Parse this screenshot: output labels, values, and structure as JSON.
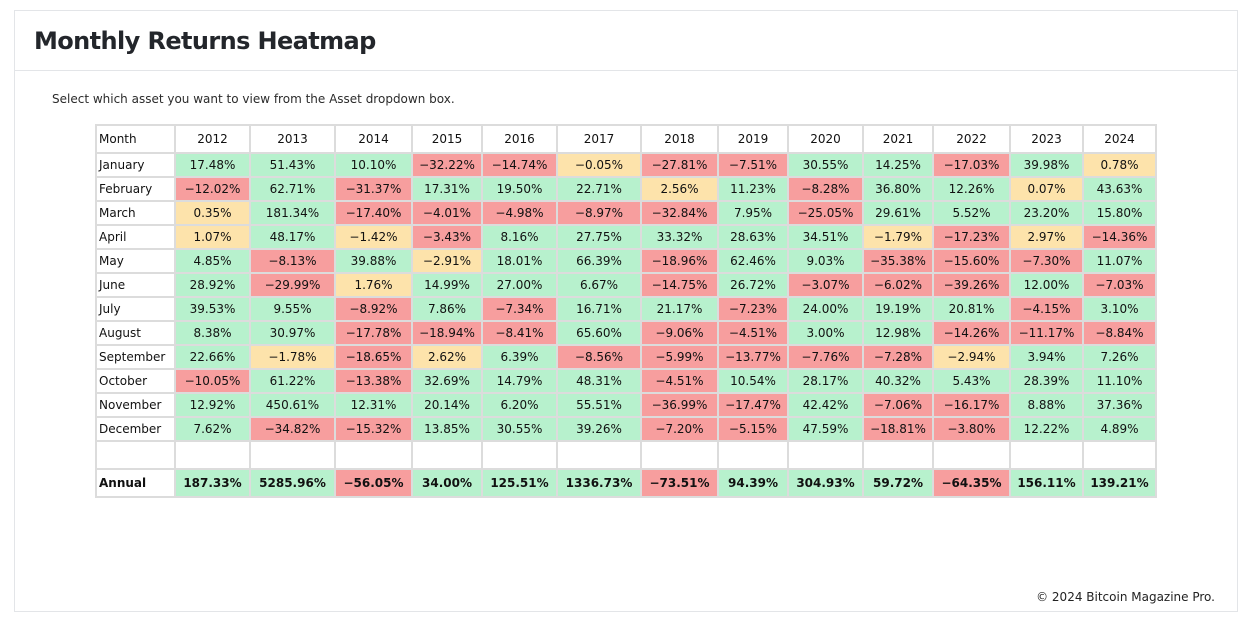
{
  "page": {
    "title": "Monthly Returns Heatmap",
    "instruction": "Select which asset you want to view from the Asset dropdown box.",
    "footer": "© 2024 Bitcoin Magazine Pro."
  },
  "colors": {
    "positive": "#b7f1cd",
    "negative": "#f79e9e",
    "near_zero": "#fde3ab",
    "border": "#dcdcdc"
  },
  "chart_data": {
    "type": "heatmap",
    "title": "Monthly Returns Heatmap",
    "row_header": "Month",
    "years": [
      "2012",
      "2013",
      "2014",
      "2015",
      "2016",
      "2017",
      "2018",
      "2019",
      "2020",
      "2021",
      "2022",
      "2023",
      "2024"
    ],
    "months": [
      "January",
      "February",
      "March",
      "April",
      "May",
      "June",
      "July",
      "August",
      "September",
      "October",
      "November",
      "December"
    ],
    "values": [
      [
        17.48,
        51.43,
        10.1,
        -32.22,
        -14.74,
        -0.05,
        -27.81,
        -7.51,
        30.55,
        14.25,
        -17.03,
        39.98,
        0.78
      ],
      [
        -12.02,
        62.71,
        -31.37,
        17.31,
        19.5,
        22.71,
        2.56,
        11.23,
        -8.28,
        36.8,
        12.26,
        0.07,
        43.63
      ],
      [
        0.35,
        181.34,
        -17.4,
        -4.01,
        -4.98,
        -8.97,
        -32.84,
        7.95,
        -25.05,
        29.61,
        5.52,
        23.2,
        15.8
      ],
      [
        1.07,
        48.17,
        -1.42,
        -3.43,
        8.16,
        27.75,
        33.32,
        28.63,
        34.51,
        -1.79,
        -17.23,
        2.97,
        -14.36
      ],
      [
        4.85,
        -8.13,
        39.88,
        -2.91,
        18.01,
        66.39,
        -18.96,
        62.46,
        9.03,
        -35.38,
        -15.6,
        -7.3,
        11.07
      ],
      [
        28.92,
        -29.99,
        1.76,
        14.99,
        27.0,
        6.67,
        -14.75,
        26.72,
        -3.07,
        -6.02,
        -39.26,
        12.0,
        -7.03
      ],
      [
        39.53,
        9.55,
        -8.92,
        7.86,
        -7.34,
        16.71,
        21.17,
        -7.23,
        24.0,
        19.19,
        20.81,
        -4.15,
        3.1
      ],
      [
        8.38,
        30.97,
        -17.78,
        -18.94,
        -8.41,
        65.6,
        -9.06,
        -4.51,
        3.0,
        12.98,
        -14.26,
        -11.17,
        -8.84
      ],
      [
        22.66,
        -1.78,
        -18.65,
        2.62,
        6.39,
        -8.56,
        -5.99,
        -13.77,
        -7.76,
        -7.28,
        -2.94,
        3.94,
        7.26
      ],
      [
        -10.05,
        61.22,
        -13.38,
        32.69,
        14.79,
        48.31,
        -4.51,
        10.54,
        28.17,
        40.32,
        5.43,
        28.39,
        11.1
      ],
      [
        12.92,
        450.61,
        12.31,
        20.14,
        6.2,
        55.51,
        -36.99,
        -17.47,
        42.42,
        -7.06,
        -16.17,
        8.88,
        37.36
      ],
      [
        7.62,
        -34.82,
        -15.32,
        13.85,
        30.55,
        39.26,
        -7.2,
        -5.15,
        47.59,
        -18.81,
        -3.8,
        12.22,
        4.89
      ]
    ],
    "display": [
      [
        "17.48%",
        "51.43%",
        "10.10%",
        "−32.22%",
        "−14.74%",
        "−0.05%",
        "−27.81%",
        "−7.51%",
        "30.55%",
        "14.25%",
        "−17.03%",
        "39.98%",
        "0.78%"
      ],
      [
        "−12.02%",
        "62.71%",
        "−31.37%",
        "17.31%",
        "19.50%",
        "22.71%",
        "2.56%",
        "11.23%",
        "−8.28%",
        "36.80%",
        "12.26%",
        "0.07%",
        "43.63%"
      ],
      [
        "0.35%",
        "181.34%",
        "−17.40%",
        "−4.01%",
        "−4.98%",
        "−8.97%",
        "−32.84%",
        "7.95%",
        "−25.05%",
        "29.61%",
        "5.52%",
        "23.20%",
        "15.80%"
      ],
      [
        "1.07%",
        "48.17%",
        "−1.42%",
        "−3.43%",
        "8.16%",
        "27.75%",
        "33.32%",
        "28.63%",
        "34.51%",
        "−1.79%",
        "−17.23%",
        "2.97%",
        "−14.36%"
      ],
      [
        "4.85%",
        "−8.13%",
        "39.88%",
        "−2.91%",
        "18.01%",
        "66.39%",
        "−18.96%",
        "62.46%",
        "9.03%",
        "−35.38%",
        "−15.60%",
        "−7.30%",
        "11.07%"
      ],
      [
        "28.92%",
        "−29.99%",
        "1.76%",
        "14.99%",
        "27.00%",
        "6.67%",
        "−14.75%",
        "26.72%",
        "−3.07%",
        "−6.02%",
        "−39.26%",
        "12.00%",
        "−7.03%"
      ],
      [
        "39.53%",
        "9.55%",
        "−8.92%",
        "7.86%",
        "−7.34%",
        "16.71%",
        "21.17%",
        "−7.23%",
        "24.00%",
        "19.19%",
        "20.81%",
        "−4.15%",
        "3.10%"
      ],
      [
        "8.38%",
        "30.97%",
        "−17.78%",
        "−18.94%",
        "−8.41%",
        "65.60%",
        "−9.06%",
        "−4.51%",
        "3.00%",
        "12.98%",
        "−14.26%",
        "−11.17%",
        "−8.84%"
      ],
      [
        "22.66%",
        "−1.78%",
        "−18.65%",
        "2.62%",
        "6.39%",
        "−8.56%",
        "−5.99%",
        "−13.77%",
        "−7.76%",
        "−7.28%",
        "−2.94%",
        "3.94%",
        "7.26%"
      ],
      [
        "−10.05%",
        "61.22%",
        "−13.38%",
        "32.69%",
        "14.79%",
        "48.31%",
        "−4.51%",
        "10.54%",
        "28.17%",
        "40.32%",
        "5.43%",
        "28.39%",
        "11.10%"
      ],
      [
        "12.92%",
        "450.61%",
        "12.31%",
        "20.14%",
        "6.20%",
        "55.51%",
        "−36.99%",
        "−17.47%",
        "42.42%",
        "−7.06%",
        "−16.17%",
        "8.88%",
        "37.36%"
      ],
      [
        "7.62%",
        "−34.82%",
        "−15.32%",
        "13.85%",
        "30.55%",
        "39.26%",
        "−7.20%",
        "−5.15%",
        "47.59%",
        "−18.81%",
        "−3.80%",
        "12.22%",
        "4.89%"
      ]
    ],
    "cell_color": [
      [
        "positive",
        "positive",
        "positive",
        "negative",
        "negative",
        "near_zero",
        "negative",
        "negative",
        "positive",
        "positive",
        "negative",
        "positive",
        "near_zero"
      ],
      [
        "negative",
        "positive",
        "negative",
        "positive",
        "positive",
        "positive",
        "near_zero",
        "positive",
        "negative",
        "positive",
        "positive",
        "near_zero",
        "positive"
      ],
      [
        "near_zero",
        "positive",
        "negative",
        "negative",
        "negative",
        "negative",
        "negative",
        "positive",
        "negative",
        "positive",
        "positive",
        "positive",
        "positive"
      ],
      [
        "near_zero",
        "positive",
        "near_zero",
        "negative",
        "positive",
        "positive",
        "positive",
        "positive",
        "positive",
        "near_zero",
        "negative",
        "near_zero",
        "negative"
      ],
      [
        "positive",
        "negative",
        "positive",
        "near_zero",
        "positive",
        "positive",
        "negative",
        "positive",
        "positive",
        "negative",
        "negative",
        "negative",
        "positive"
      ],
      [
        "positive",
        "negative",
        "near_zero",
        "positive",
        "positive",
        "positive",
        "negative",
        "positive",
        "negative",
        "negative",
        "negative",
        "positive",
        "negative"
      ],
      [
        "positive",
        "positive",
        "negative",
        "positive",
        "negative",
        "positive",
        "positive",
        "negative",
        "positive",
        "positive",
        "positive",
        "negative",
        "positive"
      ],
      [
        "positive",
        "positive",
        "negative",
        "negative",
        "negative",
        "positive",
        "negative",
        "negative",
        "positive",
        "positive",
        "negative",
        "negative",
        "negative"
      ],
      [
        "positive",
        "near_zero",
        "negative",
        "near_zero",
        "positive",
        "negative",
        "negative",
        "negative",
        "negative",
        "negative",
        "near_zero",
        "positive",
        "positive"
      ],
      [
        "negative",
        "positive",
        "negative",
        "positive",
        "positive",
        "positive",
        "negative",
        "positive",
        "positive",
        "positive",
        "positive",
        "positive",
        "positive"
      ],
      [
        "positive",
        "positive",
        "positive",
        "positive",
        "positive",
        "positive",
        "negative",
        "negative",
        "positive",
        "negative",
        "negative",
        "positive",
        "positive"
      ],
      [
        "positive",
        "negative",
        "negative",
        "positive",
        "positive",
        "positive",
        "negative",
        "negative",
        "positive",
        "negative",
        "negative",
        "positive",
        "positive"
      ]
    ],
    "annual_label": "Annual",
    "annual": [
      187.33,
      5285.96,
      -56.05,
      34.0,
      125.51,
      1336.73,
      -73.51,
      94.39,
      304.93,
      59.72,
      -64.35,
      156.11,
      139.21
    ],
    "annual_display": [
      "187.33%",
      "5285.96%",
      "−56.05%",
      "34.00%",
      "125.51%",
      "1336.73%",
      "−73.51%",
      "94.39%",
      "304.93%",
      "59.72%",
      "−64.35%",
      "156.11%",
      "139.21%"
    ],
    "annual_color": [
      "positive",
      "positive",
      "negative",
      "positive",
      "positive",
      "positive",
      "negative",
      "positive",
      "positive",
      "positive",
      "negative",
      "positive",
      "positive"
    ]
  }
}
